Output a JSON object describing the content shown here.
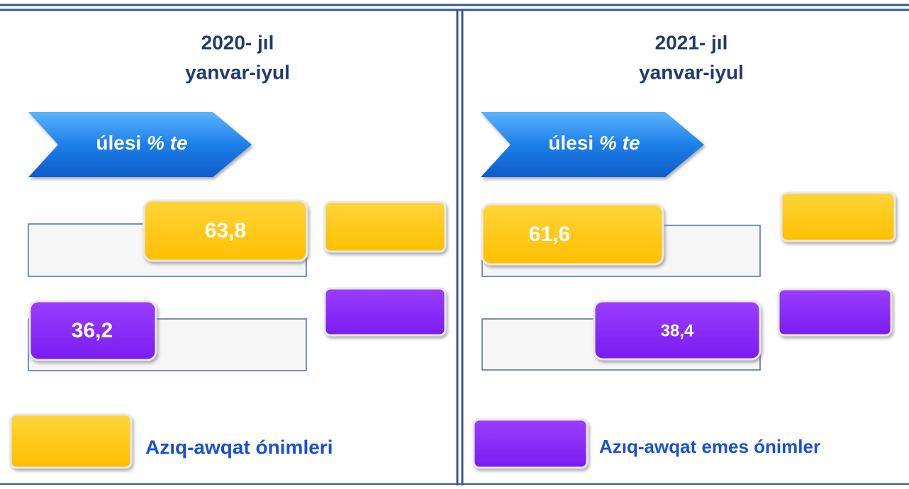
{
  "panels": [
    {
      "title": "2020- jıl",
      "subtitle": "yanvar-iyul",
      "banner": {
        "text": "úlesi",
        "unit": "% te"
      },
      "bars": [
        {
          "label": "63,8"
        },
        {
          "label": "36,2"
        }
      ],
      "legend": "Azıq-awqat ónimleri"
    },
    {
      "title": "2021- jıl",
      "subtitle": "yanvar-iyul",
      "banner": {
        "text": "úlesi",
        "unit": "% te"
      },
      "bars": [
        {
          "label": "61,6"
        },
        {
          "label": "38,4"
        }
      ],
      "legend": "Azıq-awqat emes ónimler"
    }
  ]
}
